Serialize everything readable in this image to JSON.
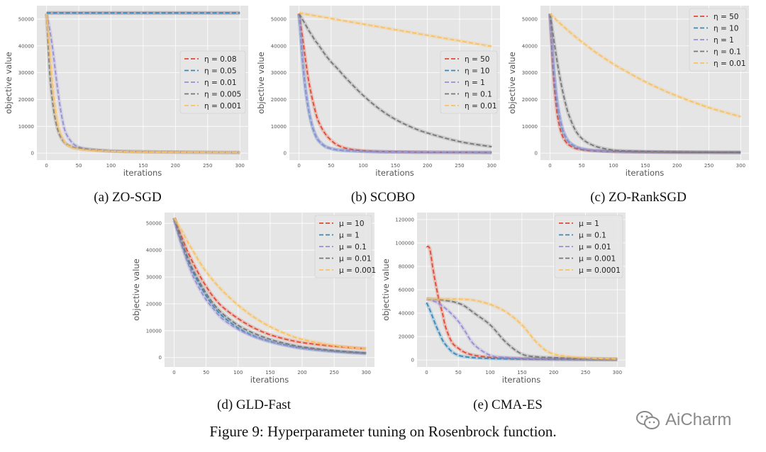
{
  "figure_caption": "Figure 9: Hyperparameter tuning on Rosenbrock function.",
  "watermark": "AiCharm",
  "colors": {
    "background": "#E5E5E5",
    "grid": "#FFFFFF",
    "red": "#E24A33",
    "blue": "#348ABD",
    "purple": "#988ED5",
    "gray": "#777777",
    "yellow": "#FBC15E"
  },
  "chart_data": [
    {
      "type": "line",
      "caption": "(a) ZO-SGD",
      "xlabel": "iterations",
      "ylabel": "objective value",
      "xlim": [
        -15,
        313
      ],
      "ylim": [
        -2600,
        55000
      ],
      "xticks": [
        "0",
        "50",
        "100",
        "150",
        "200",
        "250",
        "300"
      ],
      "yticks": [
        "0",
        "10000",
        "20000",
        "30000",
        "40000",
        "50000"
      ],
      "grid": true,
      "legend": "center-right",
      "line_style": "dashed",
      "x": [
        0,
        5,
        10,
        15,
        20,
        25,
        30,
        40,
        50,
        60,
        75,
        100,
        125,
        150,
        175,
        200,
        250,
        300
      ],
      "series": [
        {
          "name": "η = 0.08",
          "color": "#E24A33",
          "values": [
            52300,
            52300,
            52300,
            52300,
            52300,
            52300,
            52300,
            52300,
            52300,
            52300,
            52300,
            52300,
            52300,
            52300,
            52300,
            52300,
            52300,
            52300
          ]
        },
        {
          "name": "η = 0.05",
          "color": "#348ABD",
          "values": [
            52300,
            52300,
            52300,
            52300,
            52300,
            52300,
            52300,
            52300,
            52300,
            52300,
            52300,
            52300,
            52300,
            52300,
            52300,
            52300,
            52300,
            52300
          ]
        },
        {
          "name": "η = 0.01",
          "color": "#988ED5",
          "values": [
            52000,
            46000,
            38000,
            28000,
            19000,
            12000,
            7500,
            3800,
            2300,
            1700,
            1200,
            800,
            600,
            500,
            450,
            400,
            300,
            250
          ]
        },
        {
          "name": "η = 0.005",
          "color": "#777777",
          "values": [
            52000,
            30000,
            18000,
            11000,
            7000,
            4800,
            3500,
            2300,
            1800,
            1500,
            1200,
            800,
            650,
            550,
            450,
            400,
            300,
            250
          ]
        },
        {
          "name": "η = 0.001",
          "color": "#FBC15E",
          "values": [
            52000,
            38000,
            24000,
            14000,
            8500,
            5500,
            3500,
            2000,
            1500,
            1200,
            950,
            700,
            550,
            450,
            400,
            350,
            280,
            220
          ]
        }
      ]
    },
    {
      "type": "line",
      "caption": "(b) SCOBO",
      "xlabel": "iterations",
      "ylabel": "objective value",
      "xlim": [
        -15,
        313
      ],
      "ylim": [
        -2600,
        55000
      ],
      "xticks": [
        "0",
        "50",
        "100",
        "150",
        "200",
        "250",
        "300"
      ],
      "yticks": [
        "0",
        "10000",
        "20000",
        "30000",
        "40000",
        "50000"
      ],
      "grid": true,
      "legend": "center-right",
      "line_style": "dashed",
      "x": [
        0,
        5,
        10,
        15,
        20,
        25,
        30,
        40,
        50,
        60,
        75,
        100,
        125,
        150,
        175,
        200,
        250,
        300
      ],
      "series": [
        {
          "name": "η = 50",
          "color": "#E24A33",
          "values": [
            52000,
            44000,
            35000,
            27000,
            21000,
            16000,
            12000,
            7500,
            4800,
            3000,
            1700,
            900,
            600,
            500,
            400,
            350,
            300,
            250
          ]
        },
        {
          "name": "η = 10",
          "color": "#348ABD",
          "values": [
            52000,
            36000,
            24000,
            16000,
            10500,
            7000,
            4800,
            2600,
            1700,
            1200,
            900,
            650,
            500,
            420,
            380,
            340,
            280,
            240
          ]
        },
        {
          "name": "η = 1",
          "color": "#988ED5",
          "values": [
            52000,
            36500,
            24500,
            16300,
            10800,
            7200,
            4900,
            2700,
            1750,
            1250,
            920,
            660,
            510,
            430,
            385,
            345,
            285,
            245
          ]
        },
        {
          "name": "η = 0.1",
          "color": "#777777",
          "values": [
            52000,
            50000,
            48000,
            45800,
            44000,
            42000,
            40500,
            37000,
            34000,
            31500,
            27500,
            21500,
            16500,
            12600,
            9700,
            7500,
            4300,
            2400
          ]
        },
        {
          "name": "η = 0.01",
          "color": "#FBC15E",
          "values": [
            52300,
            52090,
            51880,
            51670,
            51460,
            51250,
            51050,
            50630,
            50210,
            49800,
            49170,
            48130,
            47090,
            46040,
            45000,
            43960,
            41870,
            39800
          ]
        }
      ]
    },
    {
      "type": "line",
      "caption": "(c) ZO-RankSGD",
      "xlabel": "iterations",
      "ylabel": "objective value",
      "xlim": [
        -15,
        313
      ],
      "ylim": [
        -2600,
        55000
      ],
      "xticks": [
        "0",
        "50",
        "100",
        "150",
        "200",
        "250",
        "300"
      ],
      "yticks": [
        "0",
        "10000",
        "20000",
        "30000",
        "40000",
        "50000"
      ],
      "grid": true,
      "legend": "upper-right",
      "line_style": "dashed",
      "x": [
        0,
        5,
        10,
        15,
        20,
        25,
        30,
        40,
        50,
        60,
        75,
        100,
        125,
        150,
        175,
        200,
        250,
        300
      ],
      "series": [
        {
          "name": "η = 50",
          "color": "#E24A33",
          "values": [
            52000,
            30000,
            17000,
            10000,
            6200,
            4200,
            3000,
            1800,
            1300,
            1000,
            800,
            600,
            500,
            420,
            380,
            350,
            300,
            260
          ]
        },
        {
          "name": "η = 10",
          "color": "#348ABD",
          "values": [
            52000,
            34000,
            21000,
            13500,
            8500,
            5800,
            4100,
            2400,
            1600,
            1200,
            900,
            650,
            520,
            440,
            390,
            350,
            300,
            260
          ]
        },
        {
          "name": "η = 1",
          "color": "#988ED5",
          "values": [
            52000,
            35000,
            22000,
            14000,
            9000,
            6000,
            4200,
            2500,
            1700,
            1250,
            920,
            660,
            530,
            450,
            400,
            360,
            300,
            260
          ]
        },
        {
          "name": "η = 0.1",
          "color": "#777777",
          "values": [
            52000,
            44000,
            36000,
            29000,
            23000,
            18000,
            14000,
            8500,
            5500,
            3800,
            2300,
            1100,
            750,
            600,
            500,
            420,
            340,
            280
          ]
        },
        {
          "name": "η = 0.01",
          "color": "#FBC15E",
          "values": [
            52000,
            50850,
            49700,
            48600,
            47500,
            46450,
            45400,
            43400,
            41500,
            39700,
            37100,
            33200,
            29800,
            26600,
            23800,
            21300,
            17000,
            13600
          ]
        }
      ]
    },
    {
      "type": "line",
      "caption": "(d) GLD-Fast",
      "xlabel": "iterations",
      "ylabel": "objective value",
      "xlim": [
        -15,
        313
      ],
      "ylim": [
        -3500,
        54000
      ],
      "xticks": [
        "0",
        "50",
        "100",
        "150",
        "200",
        "250",
        "300"
      ],
      "yticks": [
        "0",
        "10000",
        "20000",
        "30000",
        "40000",
        "50000"
      ],
      "grid": true,
      "legend": "upper-right",
      "line_style": "dashed",
      "x": [
        0,
        5,
        10,
        15,
        20,
        25,
        30,
        40,
        50,
        60,
        75,
        100,
        125,
        150,
        175,
        200,
        250,
        300
      ],
      "series": [
        {
          "name": "μ = 10",
          "color": "#E24A33",
          "values": [
            52000,
            49000,
            46000,
            43000,
            40000,
            37500,
            35000,
            30500,
            26500,
            23000,
            19000,
            14500,
            11000,
            8500,
            6800,
            5600,
            4200,
            3300
          ]
        },
        {
          "name": "μ = 1",
          "color": "#348ABD",
          "values": [
            52000,
            48000,
            44000,
            40500,
            37000,
            34000,
            31500,
            27000,
            23000,
            19500,
            15500,
            11000,
            8000,
            6000,
            4600,
            3500,
            2300,
            1600
          ]
        },
        {
          "name": "μ = 0.1",
          "color": "#988ED5",
          "values": [
            51000,
            47000,
            43000,
            39500,
            36000,
            33000,
            30000,
            25500,
            21500,
            18500,
            14500,
            10500,
            7800,
            5900,
            4500,
            3500,
            2300,
            1500
          ]
        },
        {
          "name": "μ = 0.01",
          "color": "#777777",
          "values": [
            52000,
            48000,
            44500,
            41000,
            38000,
            35000,
            32500,
            28000,
            24000,
            20500,
            16500,
            12000,
            9000,
            6800,
            5200,
            4000,
            2600,
            1700
          ]
        },
        {
          "name": "μ = 0.001",
          "color": "#FBC15E",
          "values": [
            52000,
            50000,
            48000,
            46000,
            43500,
            41500,
            39500,
            35500,
            32000,
            29000,
            25000,
            19500,
            15000,
            11500,
            8800,
            6800,
            4500,
            3200
          ]
        }
      ]
    },
    {
      "type": "line",
      "caption": "(e) CMA-ES",
      "xlabel": "iterations",
      "ylabel": "objective value",
      "xlim": [
        -15,
        313
      ],
      "ylim": [
        -6000,
        126000
      ],
      "xticks": [
        "0",
        "50",
        "100",
        "150",
        "200",
        "250",
        "300"
      ],
      "yticks": [
        "0",
        "20000",
        "40000",
        "60000",
        "80000",
        "100000",
        "120000"
      ],
      "grid": true,
      "legend": "upper-right",
      "line_style": "dashed",
      "x": [
        0,
        5,
        10,
        15,
        20,
        25,
        30,
        40,
        50,
        60,
        75,
        100,
        125,
        150,
        175,
        200,
        250,
        300
      ],
      "series": [
        {
          "name": "μ = 1",
          "color": "#E24A33",
          "values": [
            97000,
            95000,
            78000,
            63000,
            50000,
            40000,
            28000,
            15000,
            10000,
            6500,
            4000,
            2200,
            1500,
            1100,
            900,
            700,
            500,
            400
          ]
        },
        {
          "name": "μ = 0.1",
          "color": "#348ABD",
          "values": [
            49000,
            43000,
            36000,
            29000,
            23000,
            17000,
            13000,
            7000,
            4000,
            2800,
            1900,
            1200,
            900,
            700,
            600,
            500,
            400,
            300
          ]
        },
        {
          "name": "μ = 0.01",
          "color": "#988ED5",
          "values": [
            52000,
            51500,
            50500,
            49500,
            48000,
            46000,
            44000,
            39000,
            33000,
            25000,
            13000,
            4000,
            2200,
            1500,
            1100,
            900,
            600,
            400
          ]
        },
        {
          "name": "μ = 0.001",
          "color": "#777777",
          "values": [
            52300,
            52200,
            52000,
            51800,
            51600,
            51200,
            50800,
            50000,
            48500,
            46000,
            40000,
            30000,
            15000,
            5000,
            2600,
            2000,
            1200,
            700
          ]
        },
        {
          "name": "μ = 0.0001",
          "color": "#FBC15E",
          "values": [
            52300,
            52300,
            52300,
            52300,
            52300,
            52300,
            52300,
            52200,
            52000,
            51800,
            51000,
            47500,
            41000,
            30000,
            14000,
            5000,
            1800,
            900
          ]
        }
      ]
    }
  ]
}
